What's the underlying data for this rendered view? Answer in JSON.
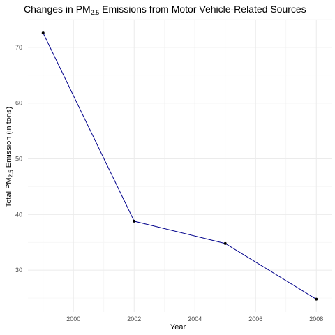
{
  "chart_data": {
    "type": "line",
    "title": {
      "prefix": "Changes in PM",
      "subscript": "2.5",
      "suffix": " Emissions from Motor Vehicle-Related Sources"
    },
    "xlabel": "Year",
    "ylabel": {
      "prefix": "Total PM",
      "subscript": "2.5",
      "suffix": " Emission (in tons)"
    },
    "x": [
      1999,
      2002,
      2005,
      2008
    ],
    "series": [
      {
        "values": [
          72.6,
          38.8,
          34.8,
          24.8
        ]
      }
    ],
    "xlim": [
      1998.5,
      2008.5
    ],
    "ylim": [
      22.5,
      75.0
    ],
    "xticks": [
      2000,
      2002,
      2004,
      2006,
      2008
    ],
    "yticks": [
      30,
      40,
      50,
      60,
      70
    ],
    "grid": true,
    "line_color": "#00008b",
    "point_color": "#000000"
  }
}
